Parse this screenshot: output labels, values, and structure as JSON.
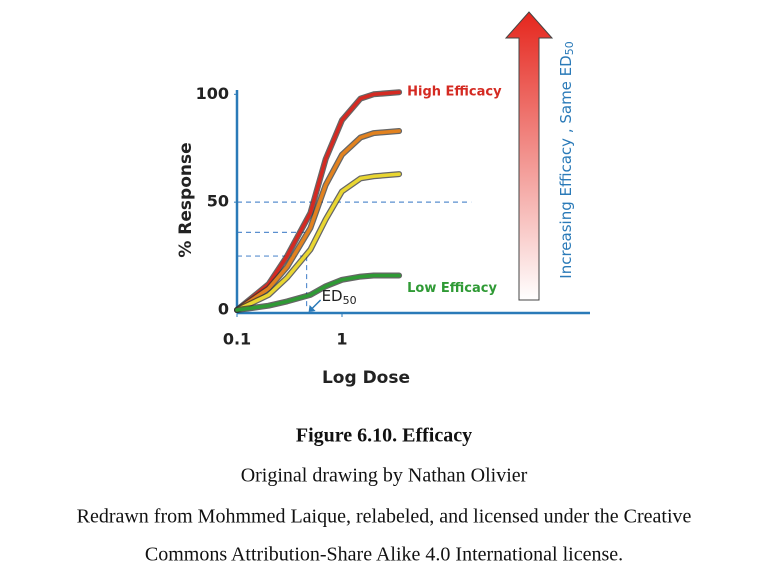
{
  "chart_data": {
    "type": "line",
    "y_label": "% Response",
    "x_label": "Log Dose",
    "x": [
      0.1,
      0.2,
      0.3,
      0.5,
      0.7,
      1,
      1.5,
      2,
      3.5
    ],
    "series": [
      {
        "name": "High Efficacy",
        "color": "#d42a22",
        "values": [
          0,
          12,
          25,
          45,
          70,
          88,
          98,
          100,
          101
        ]
      },
      {
        "name": null,
        "color": "#e2821f",
        "values": [
          0,
          10,
          20,
          38,
          58,
          72,
          80,
          82,
          83
        ]
      },
      {
        "name": null,
        "color": "#e9d631",
        "values": [
          0,
          7,
          15,
          28,
          42,
          55,
          61,
          62,
          63
        ]
      },
      {
        "name": "Low Efficacy",
        "color": "#2f9a35",
        "values": [
          0,
          2,
          4,
          7,
          11,
          14,
          15.5,
          16,
          16
        ]
      }
    ],
    "xlim": [
      0.1,
      230
    ],
    "ylim": [
      0,
      102
    ],
    "x_log": true,
    "xticks": [
      0.1,
      1
    ],
    "yticks": [
      0,
      50,
      100
    ],
    "hlines": [
      {
        "y": 50,
        "x_end": 17
      },
      {
        "y": 36,
        "x_end": 0.46
      },
      {
        "y": 25,
        "x_end": 0.46
      }
    ],
    "ed50": {
      "x": 0.46,
      "label": "ED",
      "label_sub": "50"
    },
    "arrow_label": "Increasing Efficacy , Same ED",
    "arrow_label_sub": "50"
  },
  "caption": {
    "title": "Figure 6.10. Efficacy",
    "lines": [
      "Original drawing by Nathan Olivier",
      "Redrawn from Mohmmed Laique, relabeled, and licensed under the Creative",
      "Commons Attribution-Share Alike 4.0 International license."
    ]
  }
}
